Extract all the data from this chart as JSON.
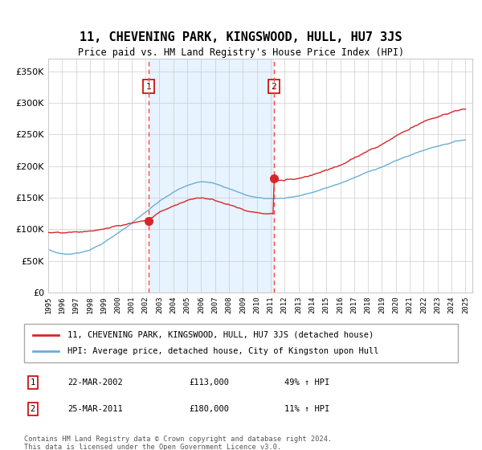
{
  "title": "11, CHEVENING PARK, KINGSWOOD, HULL, HU7 3JS",
  "subtitle": "Price paid vs. HM Land Registry's House Price Index (HPI)",
  "legend_line1": "11, CHEVENING PARK, KINGSWOOD, HULL, HU7 3JS (detached house)",
  "legend_line2": "HPI: Average price, detached house, City of Kingston upon Hull",
  "annotation1_label": "1",
  "annotation1_date": "22-MAR-2002",
  "annotation1_price": "£113,000",
  "annotation1_hpi": "49% ↑ HPI",
  "annotation2_label": "2",
  "annotation2_date": "25-MAR-2011",
  "annotation2_price": "£180,000",
  "annotation2_hpi": "11% ↑ HPI",
  "footer": "Contains HM Land Registry data © Crown copyright and database right 2024.\nThis data is licensed under the Open Government Licence v3.0.",
  "hpi_color": "#6baed6",
  "price_color": "#d62728",
  "marker_color": "#d62728",
  "box_color": "#cc0000",
  "shade_color": "#ddeeff",
  "dashed_color": "#ff4444",
  "ylim": [
    0,
    370000
  ],
  "yticks": [
    0,
    50000,
    100000,
    150000,
    200000,
    250000,
    300000,
    350000
  ],
  "start_year": 1995,
  "end_year": 2025,
  "sale1_year": 2002.22,
  "sale2_year": 2011.22,
  "sale1_value": 113000,
  "sale2_value": 180000,
  "background_color": "#ffffff",
  "grid_color": "#cccccc"
}
